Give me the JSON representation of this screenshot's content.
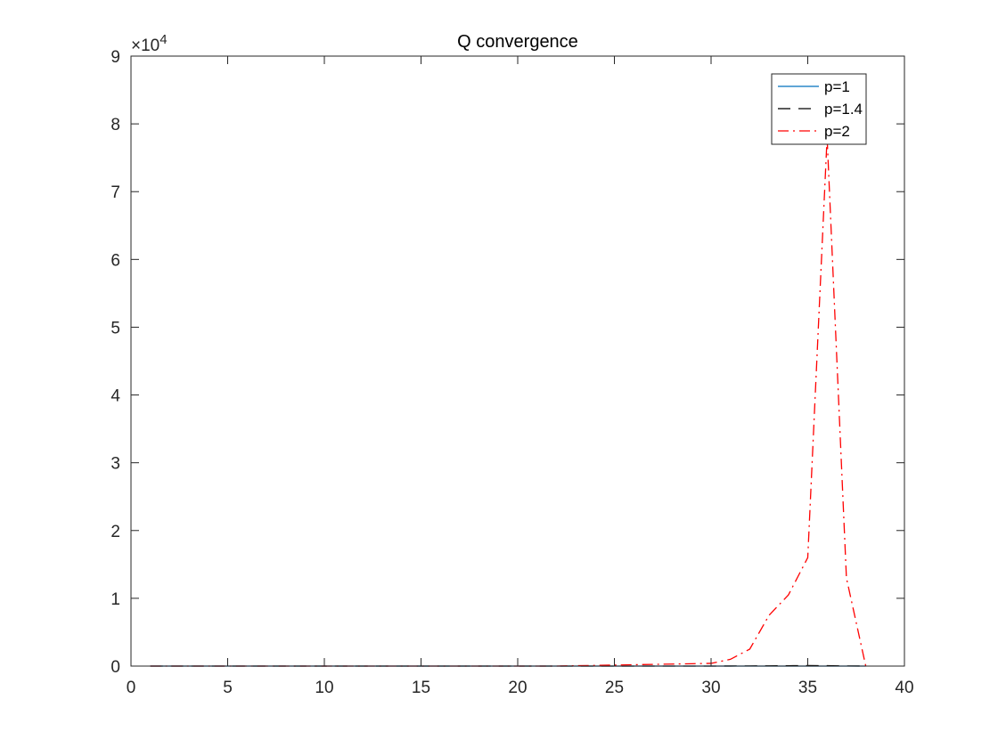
{
  "chart_data": {
    "type": "line",
    "title": "Q convergence",
    "xlabel": "",
    "ylabel": "",
    "xlim": [
      0,
      40
    ],
    "ylim": [
      0,
      90000
    ],
    "xticks": [
      0,
      5,
      10,
      15,
      20,
      25,
      30,
      35,
      40
    ],
    "yticks": [
      0,
      10000,
      20000,
      30000,
      40000,
      50000,
      60000,
      70000,
      80000,
      90000
    ],
    "ytick_labels": [
      "0",
      "1",
      "2",
      "3",
      "4",
      "5",
      "6",
      "7",
      "8",
      "9"
    ],
    "y_exponent": {
      "base": "×10",
      "power": "4"
    },
    "grid": false,
    "legend_position": "top-right",
    "series": [
      {
        "name": "p=1",
        "color": "#0072bd",
        "dash": "solid",
        "x": [
          1,
          2,
          3,
          4,
          5,
          6,
          7,
          8,
          9,
          10,
          11,
          12,
          13,
          14,
          15,
          16,
          17,
          18,
          19,
          20,
          21,
          22,
          23,
          24,
          25,
          26,
          27,
          28,
          29,
          30,
          31,
          32,
          33,
          34,
          35,
          36,
          37,
          38
        ],
        "y": [
          0,
          0,
          0,
          0,
          0,
          0,
          0,
          0,
          0,
          0,
          0,
          0,
          0,
          0,
          0,
          0,
          0,
          0,
          0,
          0,
          0,
          0,
          0,
          0,
          0,
          0,
          0,
          0,
          0,
          0,
          0,
          0,
          0,
          0,
          0,
          0,
          0,
          0
        ]
      },
      {
        "name": "p=1.4",
        "color": "#000000",
        "dash": "dashed",
        "x": [
          1,
          2,
          3,
          4,
          5,
          6,
          7,
          8,
          9,
          10,
          11,
          12,
          13,
          14,
          15,
          16,
          17,
          18,
          19,
          20,
          21,
          22,
          23,
          24,
          25,
          26,
          27,
          28,
          29,
          30,
          31,
          32,
          33,
          34,
          35,
          36,
          37,
          38
        ],
        "y": [
          0,
          0,
          0,
          0,
          0,
          0,
          0,
          0,
          0,
          0,
          0,
          0,
          0,
          0,
          0,
          0,
          0,
          0,
          0,
          0,
          0,
          0,
          0,
          0,
          0,
          0,
          0,
          0,
          0,
          0,
          10,
          20,
          30,
          50,
          80,
          60,
          20,
          0
        ]
      },
      {
        "name": "p=2",
        "color": "#ff0000",
        "dash": "dashdot",
        "x": [
          1,
          2,
          3,
          4,
          5,
          6,
          7,
          8,
          9,
          10,
          11,
          12,
          13,
          14,
          15,
          16,
          17,
          18,
          19,
          20,
          21,
          22,
          23,
          24,
          25,
          26,
          27,
          28,
          29,
          30,
          31,
          32,
          33,
          34,
          35,
          36,
          37,
          38
        ],
        "y": [
          0,
          0,
          0,
          0,
          0,
          0,
          0,
          0,
          0,
          0,
          0,
          0,
          0,
          0,
          0,
          0,
          0,
          0,
          0,
          0,
          0,
          0,
          50,
          100,
          150,
          200,
          250,
          300,
          350,
          400,
          1000,
          2500,
          7500,
          10500,
          16000,
          78000,
          13000,
          0
        ]
      }
    ]
  }
}
